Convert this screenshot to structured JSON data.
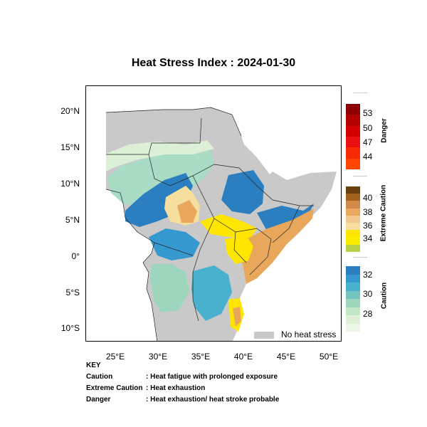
{
  "title": "Heat Stress Index : 2024-01-30",
  "lat_ticks": [
    "20°N",
    "15°N",
    "10°N",
    "5°N",
    "0°",
    "5°S",
    "10°S"
  ],
  "lon_ticks": [
    "25°E",
    "30°E",
    "35°E",
    "40°E",
    "45°E",
    "50°E"
  ],
  "no_heat_stress_label": "No heat stress",
  "colorbars": {
    "danger": {
      "title": "Danger",
      "ticks": [
        "53",
        "50",
        "47",
        "44"
      ],
      "colors": [
        "#8b0000",
        "#b50000",
        "#d40000",
        "#e81010",
        "#f52a00",
        "#ff4500"
      ]
    },
    "extreme": {
      "title": "Extreme Caution",
      "ticks": [
        "40",
        "38",
        "36",
        "34"
      ],
      "colors": [
        "#6b3e0e",
        "#a0621e",
        "#d2884a",
        "#e9a75b",
        "#f2c88e",
        "#f5de9e",
        "#ffe600",
        "#f7ee00",
        "#b8d24a"
      ]
    },
    "caution": {
      "title": "Caution",
      "ticks": [
        "32",
        "30",
        "28"
      ],
      "colors": [
        "#2b7fc0",
        "#3598cf",
        "#49b0cd",
        "#74c5c0",
        "#9dd6bd",
        "#c2e6c8",
        "#dcf0d8",
        "#eef7e8"
      ]
    }
  },
  "key": {
    "heading": "KEY",
    "rows": [
      {
        "term": "Caution",
        "desc": ": Heat fatigue with prolonged exposure"
      },
      {
        "term": "Extreme Caution",
        "desc": ": Heat exhaustion"
      },
      {
        "term": "Danger",
        "desc": ": Heat exhaustion/ heat stroke probable"
      }
    ]
  }
}
